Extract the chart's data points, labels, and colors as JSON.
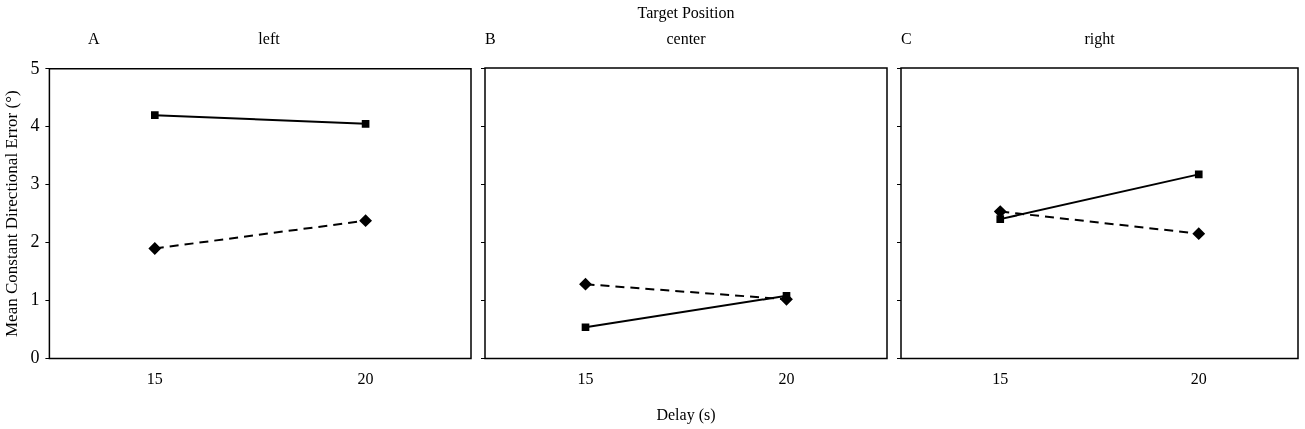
{
  "chart_data": [
    {
      "type": "line",
      "title": "left",
      "annotations": [
        "A"
      ],
      "ylabel": "Mean Constant Directional Error (°)",
      "categories": [
        "15",
        "20"
      ],
      "ylim": [
        0,
        5
      ],
      "yticks": [
        0,
        1,
        2,
        3,
        4,
        5
      ],
      "grid": false,
      "legend": false,
      "series": [
        {
          "color": "#000000",
          "values": [
            4.2,
            4.05
          ],
          "marker": "square",
          "line_style": "solid"
        },
        {
          "color": "#000000",
          "values": [
            1.9,
            2.38
          ],
          "marker": "diamond",
          "line_style": "dashed"
        }
      ]
    },
    {
      "type": "line",
      "title": "center",
      "annotations": [
        "B",
        "Target Position"
      ],
      "xlabel": "Delay (s)",
      "categories": [
        "15",
        "20"
      ],
      "ylim": [
        0,
        5
      ],
      "yticks": [
        0,
        1,
        2,
        3,
        4,
        5
      ],
      "grid": false,
      "legend": false,
      "tick_labels": "x",
      "series": [
        {
          "color": "#000000",
          "values": [
            0.54,
            1.08
          ],
          "marker": "square",
          "line_style": "solid"
        },
        {
          "color": "#000000",
          "values": [
            1.28,
            1.02
          ],
          "marker": "diamond",
          "line_style": "dashed"
        }
      ]
    },
    {
      "type": "line",
      "title": "right",
      "annotations": [
        "C"
      ],
      "categories": [
        "15",
        "20"
      ],
      "ylim": [
        0,
        5
      ],
      "yticks": [
        0,
        1,
        2,
        3,
        4,
        5
      ],
      "grid": false,
      "legend": false,
      "tick_labels": "x",
      "series": [
        {
          "color": "#000000",
          "values": [
            2.4,
            3.17
          ],
          "marker": "square",
          "line_style": "solid"
        },
        {
          "color": "#000000",
          "values": [
            2.53,
            2.15
          ],
          "marker": "diamond",
          "line_style": "dashed"
        }
      ]
    }
  ]
}
